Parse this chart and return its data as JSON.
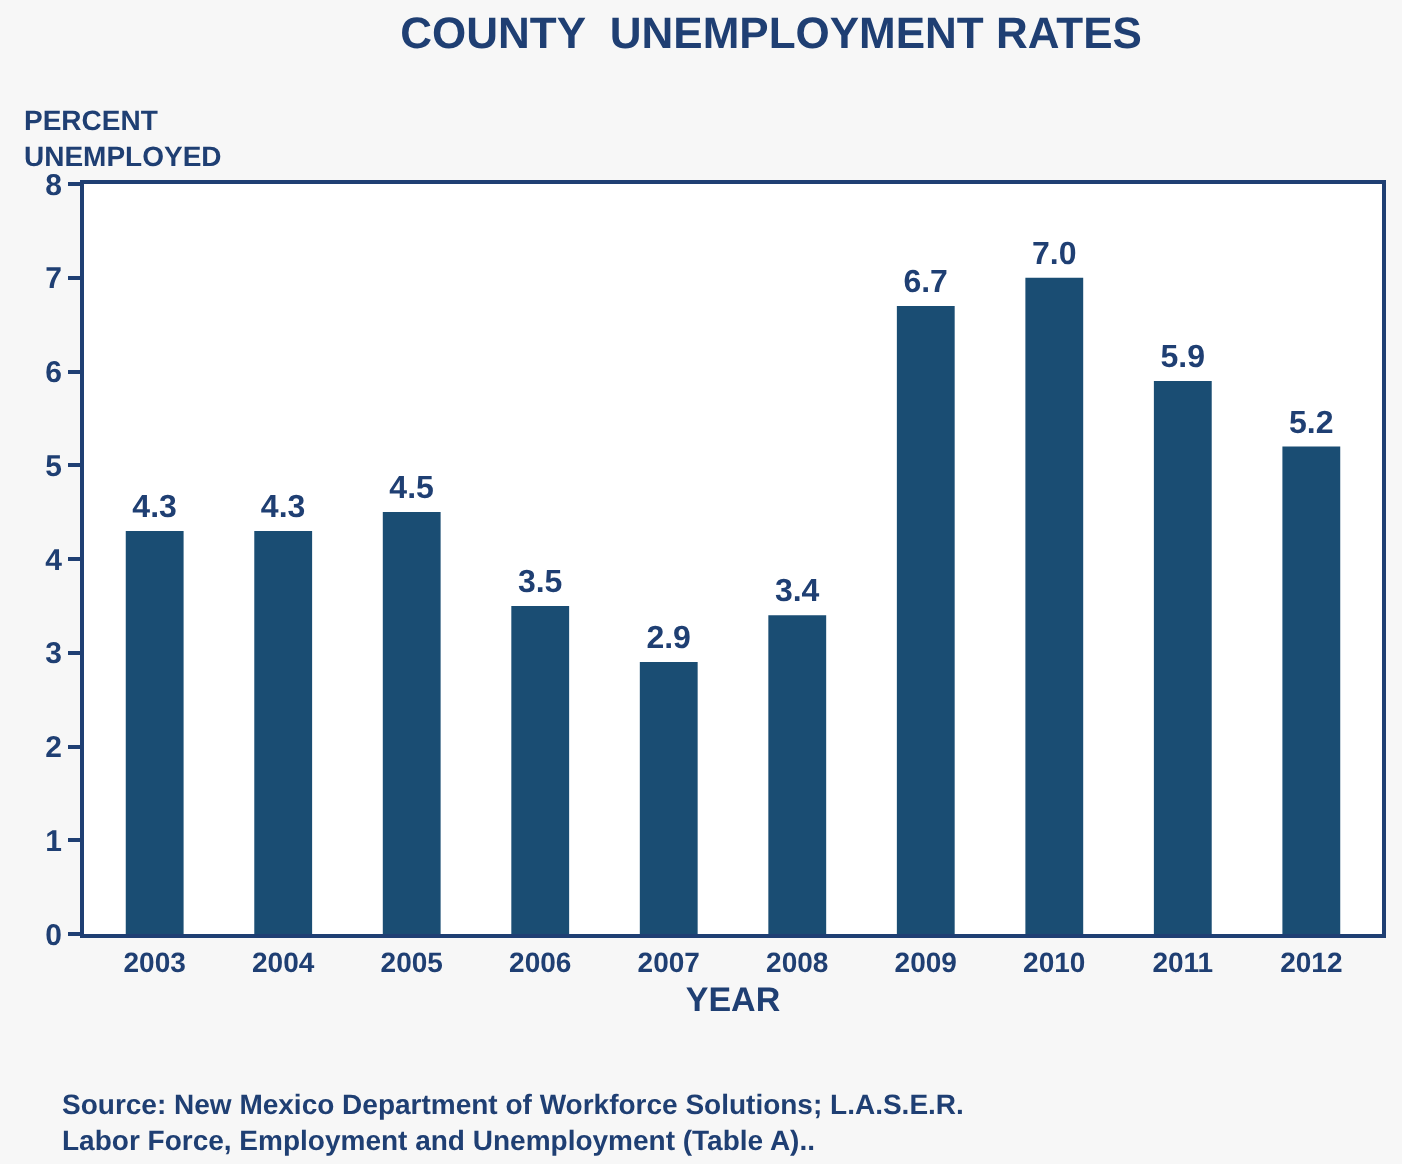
{
  "chart_data": {
    "type": "bar",
    "title": "COUNTY  UNEMPLOYMENT RATES",
    "xlabel": "YEAR",
    "ylabel": "PERCENT UNEMPLOYED",
    "categories": [
      "2003",
      "2004",
      "2005",
      "2006",
      "2007",
      "2008",
      "2009",
      "2010",
      "2011",
      "2012"
    ],
    "values": [
      4.3,
      4.3,
      4.5,
      3.5,
      2.9,
      3.4,
      6.7,
      7.0,
      5.9,
      5.2
    ],
    "value_labels": [
      "4.3",
      "4.3",
      "4.5",
      "3.5",
      "2.9",
      "3.4",
      "6.7",
      "7.0",
      "5.9",
      "5.2"
    ],
    "color": "#1a4d73",
    "ylim": [
      0,
      8
    ],
    "yticks": [
      0,
      1,
      2,
      3,
      4,
      5,
      6,
      7,
      8
    ],
    "grid": false,
    "legend": false,
    "annotations": [
      "Source: New Mexico Department of Workforce Solutions; L.A.S.E.R. Labor Force, Employment and Unemployment (Table A).."
    ]
  }
}
